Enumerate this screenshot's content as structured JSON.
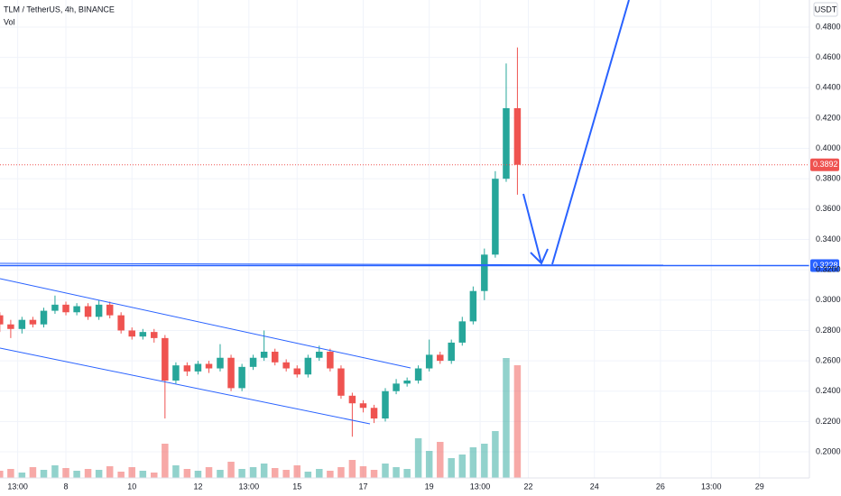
{
  "chart_data": {
    "type": "candlestick",
    "title": "TLM / TetherUS, 4h, BINANCE",
    "volume_label": "Vol",
    "currency": "USDT",
    "x": [
      6,
      6.33,
      6.67,
      7,
      7.33,
      7.67,
      8,
      8.33,
      8.67,
      9,
      9.33,
      9.67,
      10,
      10.33,
      10.67,
      11,
      11.33,
      11.67,
      12,
      12.33,
      12.67,
      13,
      13.33,
      13.67,
      14,
      14.33,
      14.67,
      15,
      15.33,
      15.67,
      16,
      16.33,
      16.67,
      17,
      17.33,
      17.67,
      18,
      18.33,
      18.67,
      19,
      19.33,
      19.67,
      20,
      20.33,
      20.67,
      21,
      21.33,
      21.67
    ],
    "open": [
      0.29,
      0.284,
      0.281,
      0.287,
      0.284,
      0.293,
      0.297,
      0.292,
      0.296,
      0.289,
      0.297,
      0.29,
      0.28,
      0.276,
      0.279,
      0.275,
      0.247,
      0.257,
      0.253,
      0.258,
      0.255,
      0.262,
      0.242,
      0.256,
      0.262,
      0.266,
      0.259,
      0.255,
      0.251,
      0.262,
      0.266,
      0.255,
      0.237,
      0.232,
      0.229,
      0.222,
      0.24,
      0.245,
      0.247,
      0.255,
      0.264,
      0.26,
      0.272,
      0.286,
      0.306,
      0.33,
      0.38,
      0.4265
    ],
    "high": [
      0.292,
      0.287,
      0.289,
      0.289,
      0.295,
      0.303,
      0.299,
      0.298,
      0.298,
      0.3,
      0.299,
      0.292,
      0.282,
      0.281,
      0.281,
      0.277,
      0.259,
      0.259,
      0.26,
      0.26,
      0.271,
      0.264,
      0.258,
      0.264,
      0.28,
      0.268,
      0.261,
      0.257,
      0.264,
      0.27,
      0.268,
      0.257,
      0.239,
      0.234,
      0.231,
      0.242,
      0.248,
      0.249,
      0.257,
      0.274,
      0.266,
      0.274,
      0.289,
      0.309,
      0.334,
      0.385,
      0.456,
      0.4665
    ],
    "low": [
      0.279,
      0.275,
      0.278,
      0.282,
      0.282,
      0.291,
      0.29,
      0.29,
      0.287,
      0.287,
      0.288,
      0.278,
      0.274,
      0.274,
      0.272,
      0.222,
      0.245,
      0.25,
      0.251,
      0.252,
      0.253,
      0.24,
      0.24,
      0.254,
      0.26,
      0.257,
      0.253,
      0.249,
      0.249,
      0.26,
      0.253,
      0.235,
      0.21,
      0.226,
      0.219,
      0.22,
      0.238,
      0.243,
      0.245,
      0.253,
      0.258,
      0.258,
      0.27,
      0.284,
      0.3,
      0.328,
      0.378,
      0.3695
    ],
    "close": [
      0.284,
      0.281,
      0.287,
      0.284,
      0.293,
      0.297,
      0.292,
      0.296,
      0.289,
      0.297,
      0.29,
      0.28,
      0.276,
      0.279,
      0.275,
      0.247,
      0.257,
      0.253,
      0.258,
      0.255,
      0.262,
      0.242,
      0.256,
      0.262,
      0.266,
      0.259,
      0.255,
      0.251,
      0.262,
      0.266,
      0.255,
      0.237,
      0.232,
      0.229,
      0.222,
      0.24,
      0.245,
      0.247,
      0.255,
      0.264,
      0.26,
      0.272,
      0.286,
      0.306,
      0.33,
      0.38,
      0.4265,
      0.3892
    ],
    "volume": [
      8,
      10,
      6,
      12,
      9,
      14,
      11,
      8,
      10,
      9,
      13,
      7,
      12,
      8,
      6,
      38,
      14,
      10,
      8,
      12,
      9,
      18,
      10,
      12,
      16,
      11,
      9,
      14,
      7,
      10,
      8,
      12,
      20,
      13,
      9,
      16,
      12,
      10,
      44,
      30,
      40,
      22,
      26,
      34,
      38,
      52,
      133,
      125
    ],
    "up_color": "#26a69a",
    "down_color": "#ef5350",
    "xlim": [
      6.005,
      30.51
    ],
    "ylim": [
      0.1828,
      0.4978
    ],
    "grid": true,
    "xticks": [
      {
        "value": 6.54,
        "label": "13:00"
      },
      8,
      10,
      12,
      {
        "value": 13.54,
        "label": "13:00"
      },
      15,
      17,
      19,
      {
        "value": 20.54,
        "label": "13:00"
      },
      22,
      24,
      26,
      {
        "value": 27.54,
        "label": "13:00"
      },
      29
    ],
    "yticks": [
      {
        "value": 0.2,
        "label": "0.2000"
      },
      {
        "value": 0.22,
        "label": "0.2200"
      },
      {
        "value": 0.24,
        "label": "0.2400"
      },
      {
        "value": 0.26,
        "label": "0.2600"
      },
      {
        "value": 0.28,
        "label": "0.2800"
      },
      {
        "value": 0.3,
        "label": "0.3000"
      },
      {
        "value": 0.32,
        "label": "0.3200"
      },
      {
        "value": 0.34,
        "label": "0.3400"
      },
      {
        "value": 0.36,
        "label": "0.3600"
      },
      {
        "value": 0.38,
        "label": "0.3800"
      },
      {
        "value": 0.4,
        "label": "0.4000"
      },
      {
        "value": 0.42,
        "label": "0.4200"
      },
      {
        "value": 0.44,
        "label": "0.4400"
      },
      {
        "value": 0.46,
        "label": "0.4600"
      },
      {
        "value": 0.48,
        "label": "0.4800"
      }
    ],
    "last_price": {
      "value": 0.3892,
      "label": "0.3892"
    },
    "hline": {
      "value": 0.3228,
      "label": "0.3228"
    }
  }
}
